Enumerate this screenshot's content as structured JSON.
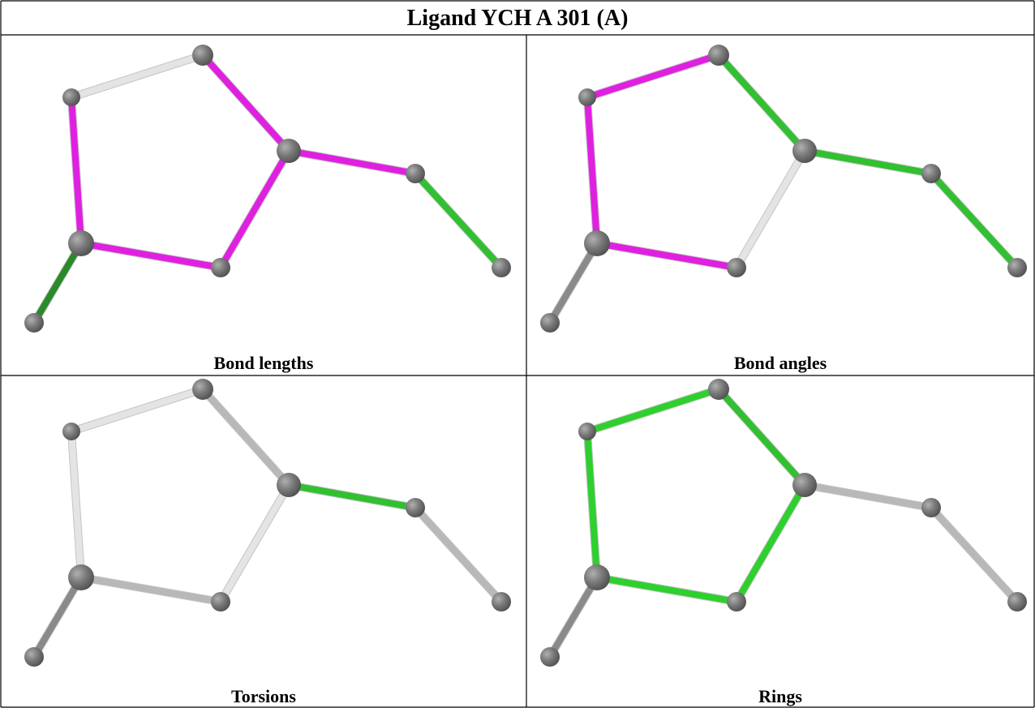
{
  "title": "Ligand YCH A 301 (A)",
  "panels": [
    {
      "caption": "Bond lengths"
    },
    {
      "caption": "Bond angles"
    },
    {
      "caption": "Torsions"
    },
    {
      "caption": "Rings"
    }
  ]
}
